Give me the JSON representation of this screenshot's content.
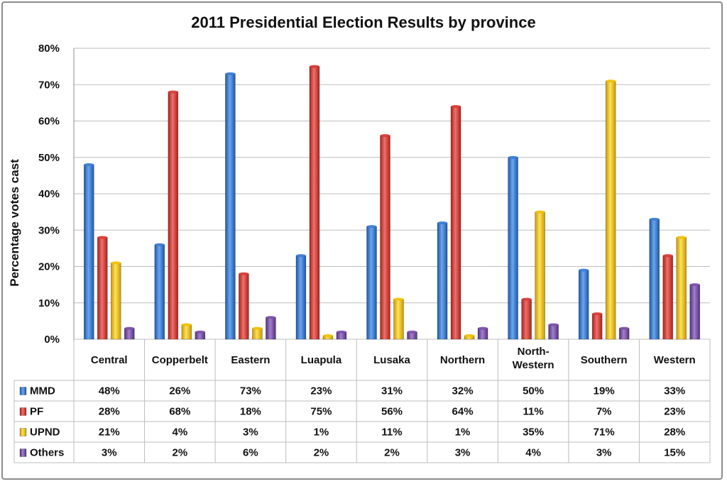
{
  "chart_data": {
    "type": "bar",
    "title": "2011 Presidential Election Results by province",
    "ylabel": "Percentage votes cast",
    "xlabel": "",
    "ylim": [
      0,
      80
    ],
    "yticks": [
      "0%",
      "10%",
      "20%",
      "30%",
      "40%",
      "50%",
      "60%",
      "70%",
      "80%"
    ],
    "grid": true,
    "categories": [
      "Central",
      "Copperbelt",
      "Eastern",
      "Luapula",
      "Lusaka",
      "Northern",
      "North-\nWestern",
      "Southern",
      "Western"
    ],
    "series": [
      {
        "name": "MMD",
        "color": "#3a7bd5",
        "values": [
          48,
          26,
          73,
          23,
          31,
          32,
          50,
          19,
          33
        ],
        "labels": [
          "48%",
          "26%",
          "73%",
          "23%",
          "31%",
          "32%",
          "50%",
          "19%",
          "33%"
        ]
      },
      {
        "name": "PF",
        "color": "#d93a34",
        "values": [
          28,
          68,
          18,
          75,
          56,
          64,
          11,
          7,
          23
        ],
        "labels": [
          "28%",
          "68%",
          "18%",
          "75%",
          "56%",
          "64%",
          "11%",
          "7%",
          "23%"
        ]
      },
      {
        "name": "UPND",
        "color": "#f2c200",
        "values": [
          21,
          4,
          3,
          1,
          11,
          1,
          35,
          71,
          28
        ],
        "labels": [
          "21%",
          "4%",
          "3%",
          "1%",
          "11%",
          "1%",
          "35%",
          "71%",
          "28%"
        ]
      },
      {
        "name": "Others",
        "color": "#7b4ea8",
        "values": [
          3,
          2,
          6,
          2,
          2,
          3,
          4,
          3,
          15
        ],
        "labels": [
          "3%",
          "2%",
          "6%",
          "2%",
          "2%",
          "3%",
          "4%",
          "3%",
          "15%"
        ]
      }
    ],
    "legend": "data-table-left"
  }
}
